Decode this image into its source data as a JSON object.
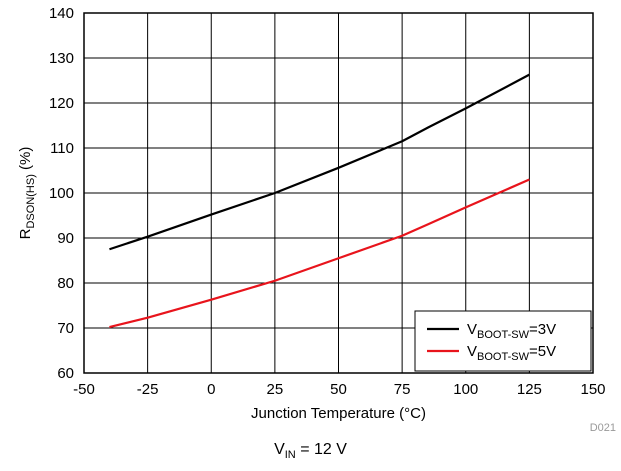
{
  "chart_data": {
    "type": "line",
    "title": "",
    "xlabel": "Junction Temperature (°C)",
    "ylabel": {
      "main": "R",
      "sub": "DSON(HS)",
      "unit": " (%)"
    },
    "xlim": [
      -50,
      150
    ],
    "ylim": [
      60,
      140
    ],
    "xticks": [
      -50,
      -25,
      0,
      25,
      50,
      75,
      100,
      125,
      150
    ],
    "yticks": [
      60,
      70,
      80,
      90,
      100,
      110,
      120,
      130,
      140
    ],
    "grid": true,
    "legend_position": "bottom-right",
    "series": [
      {
        "name": "VBOOT-SW=3V",
        "label_main": "V",
        "label_sub": "BOOT-SW",
        "label_tail": "=3V",
        "color": "#000000",
        "x": [
          -40,
          -25,
          0,
          25,
          50,
          75,
          85,
          100,
          125
        ],
        "y": [
          87.5,
          90.3,
          95.2,
          100,
          105.6,
          111.5,
          114.5,
          118.8,
          126.3
        ]
      },
      {
        "name": "VBOOT-SW=5V",
        "label_main": "V",
        "label_sub": "BOOT-SW",
        "label_tail": "=5V",
        "color": "#e8141c",
        "x": [
          -40,
          -25,
          0,
          25,
          50,
          75,
          85,
          100,
          125
        ],
        "y": [
          70.2,
          72.3,
          76.3,
          80.5,
          85.5,
          90.5,
          93,
          96.8,
          103
        ]
      }
    ]
  },
  "figure_id": "D021",
  "caption": {
    "main": "V",
    "sub": "IN",
    "tail": " = 12 V"
  }
}
